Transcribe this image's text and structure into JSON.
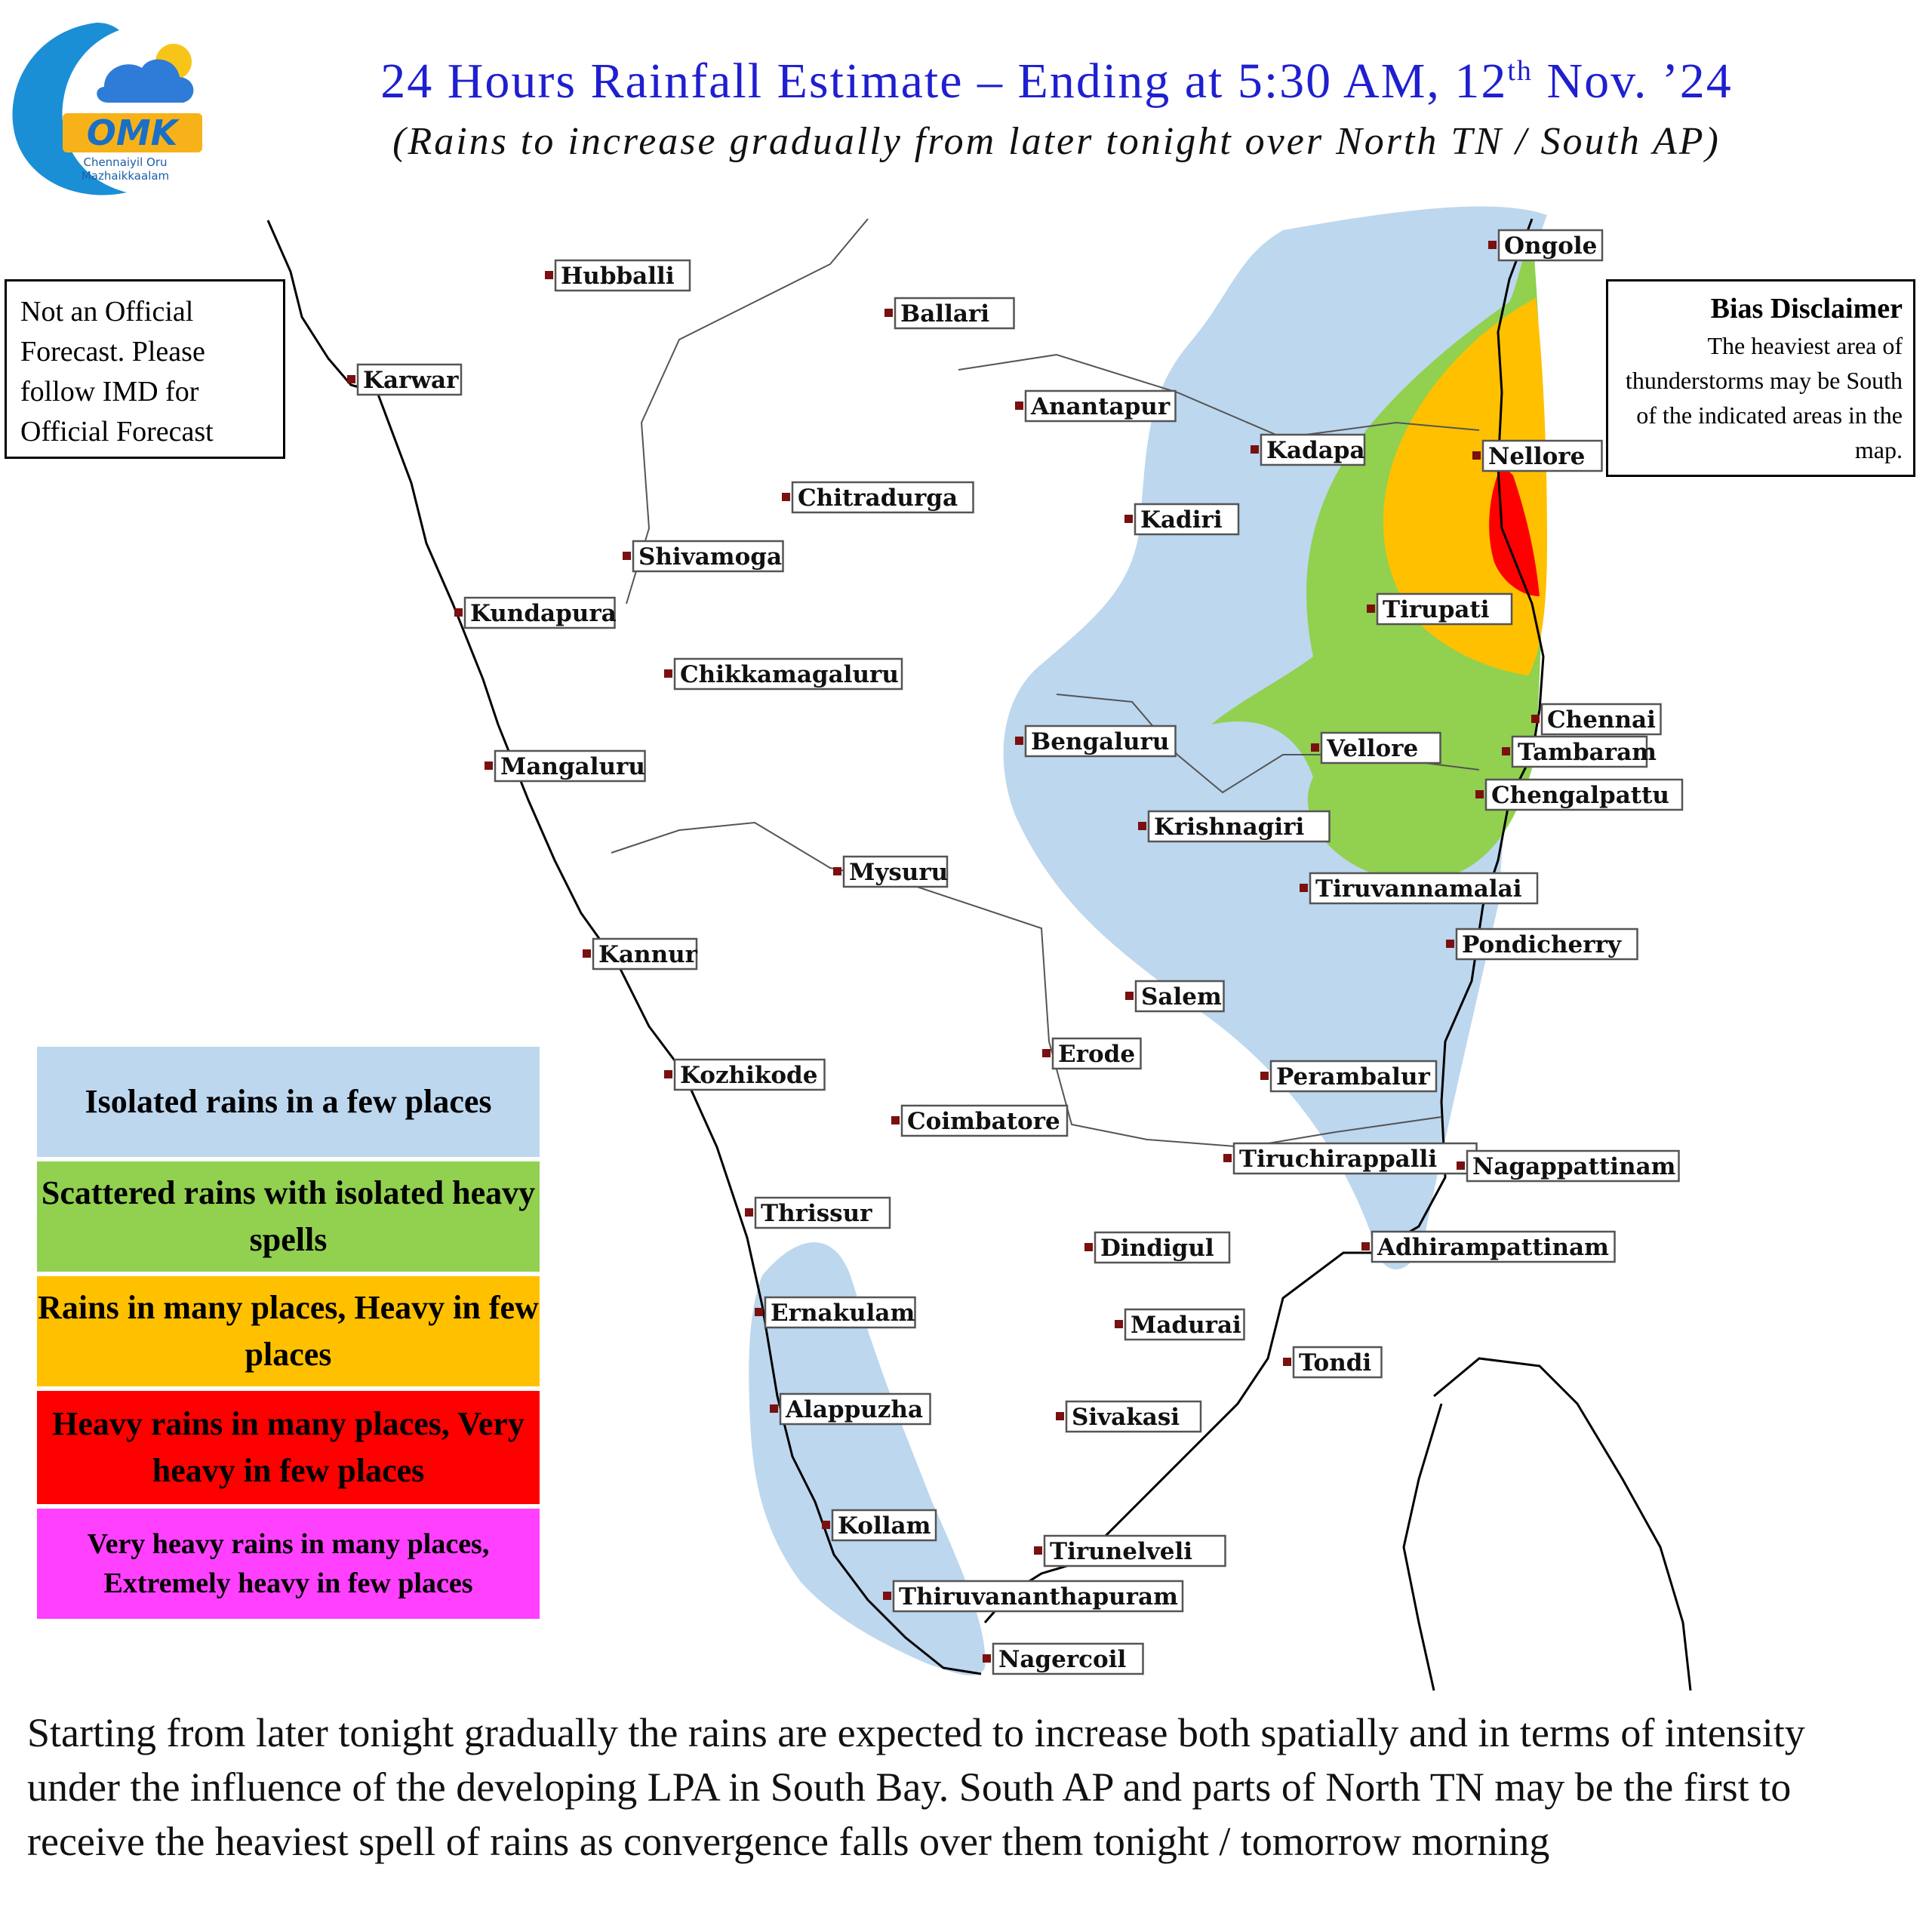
{
  "header": {
    "title_main": "24 Hours Rainfall Estimate – Ending at 5:30 AM, 12",
    "title_sup": "th",
    "title_end": " Nov. ’24",
    "subtitle": "(Rains to increase gradually from later tonight over North TN / South AP)"
  },
  "logo": {
    "wordmark": "OMK",
    "line1": "Chennaiyil Oru",
    "line2": "Mazhaikkaalam"
  },
  "disclaimer": {
    "official_text": "Not an Official Forecast. Please follow IMD for Official Forecast",
    "bias_title": "Bias Disclaimer",
    "bias_text": "The heaviest area of thunderstorms may be South of the indicated areas in the map."
  },
  "legend": {
    "items": [
      {
        "label": "Isolated rains in a few places",
        "color": "#bdd7ee"
      },
      {
        "label": "Scattered rains with isolated heavy spells",
        "color": "#92d050"
      },
      {
        "label": "Rains in many places, Heavy in few places",
        "color": "#ffc000"
      },
      {
        "label": "Heavy rains in many places, Very heavy in few places",
        "color": "#ff0000"
      },
      {
        "label": "Very heavy rains in many places, Extremely heavy in few places",
        "color": "#ff40ff"
      }
    ]
  },
  "cities": [
    "Hubballi",
    "Ballari",
    "Karwar",
    "Anantapur",
    "Chitradurga",
    "Shivamoga",
    "Kundapura",
    "Chikkamagaluru",
    "Mangaluru",
    "Mysuru",
    "Kannur",
    "Kozhikode",
    "Coimbatore",
    "Thrissur",
    "Ernakulam",
    "Alappuzha",
    "Kollam",
    "Thiruvananthapuram",
    "Nagercoil",
    "Tirunelveli",
    "Sivakasi",
    "Madurai",
    "Dindigul",
    "Erode",
    "Salem",
    "Bengaluru",
    "Krishnagiri",
    "Kadiri",
    "Kadapa",
    "Ongole",
    "Nellore",
    "Tirupati",
    "Chennai",
    "Tambaram",
    "Chengalpattu",
    "Vellore",
    "Tiruvannamalai",
    "Pondicherry",
    "Perambalur",
    "Tiruchirappalli",
    "Nagappattinam",
    "Adhirampattinam",
    "Tondi"
  ],
  "footer": {
    "text": "Starting from later tonight gradually the rains are expected to increase both spatially and in terms of intensity under the influence of the developing LPA in South Bay. South AP and parts of North TN may be the first to receive the heaviest spell of rains as convergence falls over them tonight / tomorrow morning"
  }
}
